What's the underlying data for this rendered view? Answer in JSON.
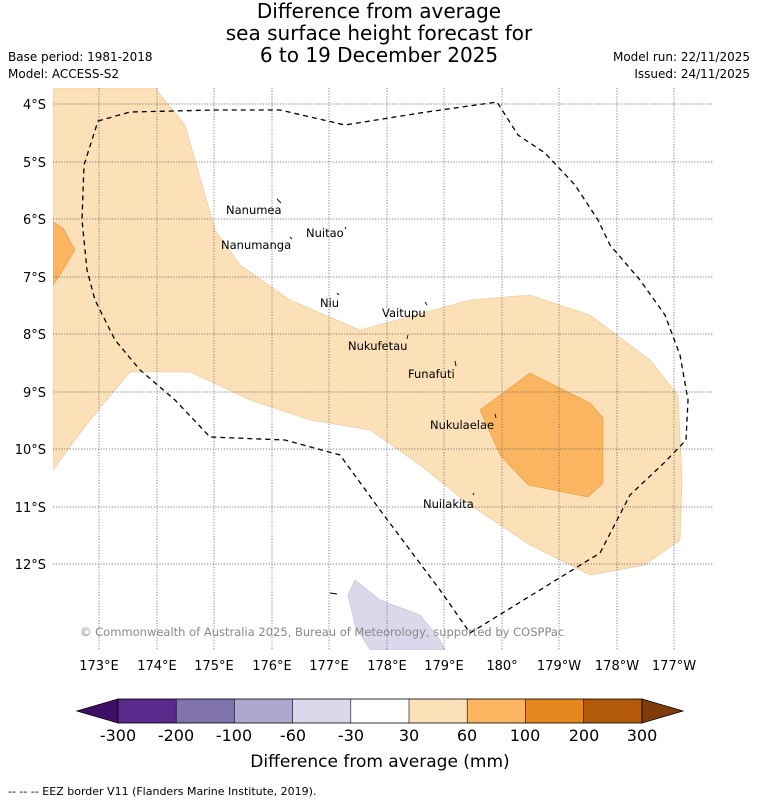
{
  "title": {
    "line1": "Difference from average",
    "line2": "sea surface height forecast for",
    "line3": "6 to 19 December 2025"
  },
  "meta": {
    "base_period": "Base period: 1981-2018",
    "model": "Model: ACCESS-S2",
    "model_run": "Model run: 22/11/2025",
    "issued": "Issued: 24/11/2025"
  },
  "map": {
    "lat_labels": [
      "4°S",
      "5°S",
      "6°S",
      "7°S",
      "8°S",
      "9°S",
      "10°S",
      "11°S",
      "12°S"
    ],
    "lon_labels": [
      "173°E",
      "174°E",
      "175°E",
      "176°E",
      "177°E",
      "178°E",
      "179°E",
      "180°",
      "179°W",
      "178°W",
      "177°W"
    ],
    "places": [
      "Nanumea",
      "Nuitao",
      "Nanumanga",
      "Niu",
      "Vaitupu",
      "Nukufetau",
      "Funafuti",
      "Nukulaelae",
      "Nuilakita"
    ],
    "copyright": "© Commonwealth of Australia 2025, Bureau of Meteorology, supported by COSPPac"
  },
  "colorbar": {
    "ticks": [
      "-300",
      "-200",
      "-100",
      "-60",
      "-30",
      "30",
      "60",
      "100",
      "200",
      "300"
    ],
    "label": "Difference from average (mm)",
    "colors": [
      "#5b2a8c",
      "#7f72ad",
      "#aea8d1",
      "#d9d9eb",
      "#ffffff",
      "#fce0b8",
      "#fbb561",
      "#e3871e",
      "#b25a08"
    ],
    "low_extend_color": "#3f0f66",
    "high_extend_color": "#7f3b08"
  },
  "legend": {
    "eez": "-- -- -- EEZ border V11 (Flanders Marine Institute, 2019)."
  }
}
